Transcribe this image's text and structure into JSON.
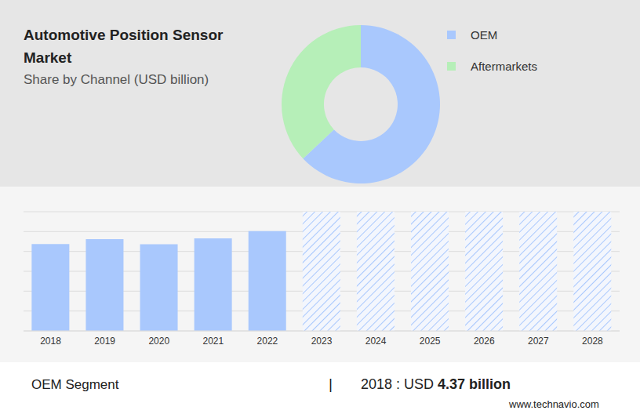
{
  "chart_data": [
    {
      "type": "pie",
      "title": "Automotive Position Sensor Market",
      "subtitle": "Share by Channel (USD billion)",
      "categories": [
        "OEM",
        "Aftermarkets"
      ],
      "values": [
        63,
        37
      ],
      "colors": [
        "#a9c8fd",
        "#b6efb8"
      ],
      "legend": "right"
    },
    {
      "type": "bar",
      "categories": [
        "2018",
        "2019",
        "2020",
        "2021",
        "2022",
        "2023",
        "2024",
        "2025",
        "2026",
        "2027",
        "2028"
      ],
      "series": [
        {
          "color": "#a9c8fd",
          "values": [
            4.37,
            4.62,
            4.36,
            4.66,
            5.02,
            null,
            null,
            null,
            null,
            null,
            null
          ]
        },
        {
          "color": "#a9c8fd",
          "line_style": "hatched",
          "values": [
            null,
            null,
            null,
            null,
            null,
            6,
            6,
            6,
            6,
            6,
            6
          ]
        }
      ],
      "ylim": [
        0,
        6
      ],
      "yticks": [
        0,
        1,
        2,
        3,
        4,
        5,
        6
      ],
      "grid": true,
      "tick_labels": "x"
    }
  ],
  "footer": {
    "segment": "OEM Segment",
    "divider": "|",
    "year_label": "2018 : USD",
    "value_label": "4.37 billion",
    "source": "www.technavio.com"
  }
}
